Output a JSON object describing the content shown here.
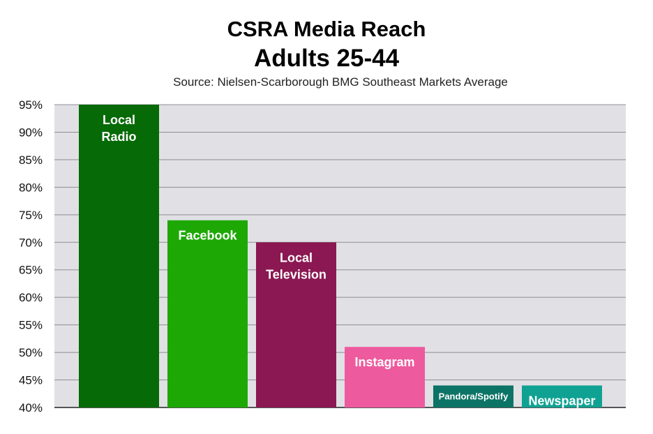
{
  "chart_data": {
    "type": "bar",
    "title": "CSRA Media Reach",
    "subtitle": "Adults 25-44",
    "source": "Source: Nielsen-Scarborough BMG Southeast Markets Average",
    "categories": [
      [
        "Local",
        "Radio"
      ],
      [
        "Facebook"
      ],
      [
        "Local",
        "Television"
      ],
      [
        "Instagram"
      ],
      [
        "Pandora/Spotify"
      ],
      [
        "Newspaper"
      ]
    ],
    "values": [
      95,
      74,
      70,
      51,
      44,
      44
    ],
    "bar_colors": [
      "#066a06",
      "#1ea806",
      "#8b1852",
      "#ee5a9e",
      "#0c7466",
      "#0fa293"
    ],
    "ylim": [
      40,
      95
    ],
    "yticks": [
      "40%",
      "45%",
      "50%",
      "55%",
      "60%",
      "65%",
      "70%",
      "75%",
      "80%",
      "85%",
      "90%",
      "95%"
    ],
    "ytick_values": [
      40,
      45,
      50,
      55,
      60,
      65,
      70,
      75,
      80,
      85,
      90,
      95
    ],
    "plot_background": "#e1e0e5",
    "grid": true,
    "legend": "none"
  }
}
